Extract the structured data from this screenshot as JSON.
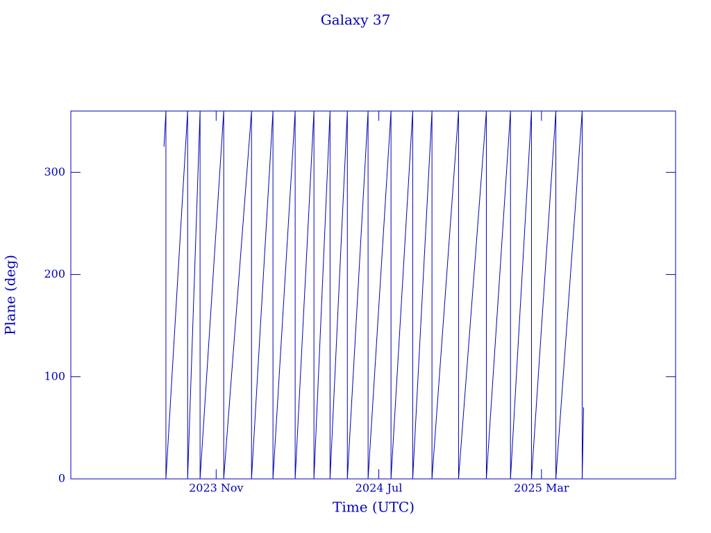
{
  "chart_data": {
    "type": "line",
    "title": "Galaxy 37",
    "xlabel": "Time (UTC)",
    "ylabel": "Plane (deg)",
    "x": [
      2023.619,
      2023.627,
      2023.627,
      2023.716,
      2023.716,
      2023.767,
      2023.767,
      2023.864,
      2023.864,
      2023.978,
      2023.978,
      2024.066,
      2024.066,
      2024.157,
      2024.157,
      2024.234,
      2024.234,
      2024.3,
      2024.3,
      2024.371,
      2024.371,
      2024.456,
      2024.456,
      2024.55,
      2024.55,
      2024.639,
      2024.639,
      2024.718,
      2024.718,
      2024.827,
      2024.827,
      2024.941,
      2024.941,
      2025.04,
      2025.04,
      2025.126,
      2025.126,
      2025.226,
      2025.226,
      2025.334,
      2025.334,
      2025.34
    ],
    "series": [
      {
        "color": "#0000b4",
        "values": [
          325,
          360,
          0,
          360,
          0,
          360,
          0,
          360,
          0,
          360,
          0,
          360,
          0,
          360,
          0,
          360,
          0,
          360,
          0,
          360,
          0,
          360,
          0,
          360,
          0,
          360,
          0,
          360,
          0,
          360,
          0,
          360,
          0,
          360,
          0,
          360,
          0,
          360,
          0,
          360,
          0,
          70
        ]
      }
    ],
    "xlim": [
      2023.237,
      2025.717
    ],
    "xticks": [
      {
        "value": 2023.833,
        "label": "2023 Nov"
      },
      {
        "value": 2024.5,
        "label": "2024 Jul"
      },
      {
        "value": 2025.167,
        "label": "2025 Mar"
      }
    ],
    "ylim": [
      0,
      360
    ],
    "yticks": [
      0,
      100,
      200,
      300
    ],
    "axis_color": "#0000b4"
  }
}
